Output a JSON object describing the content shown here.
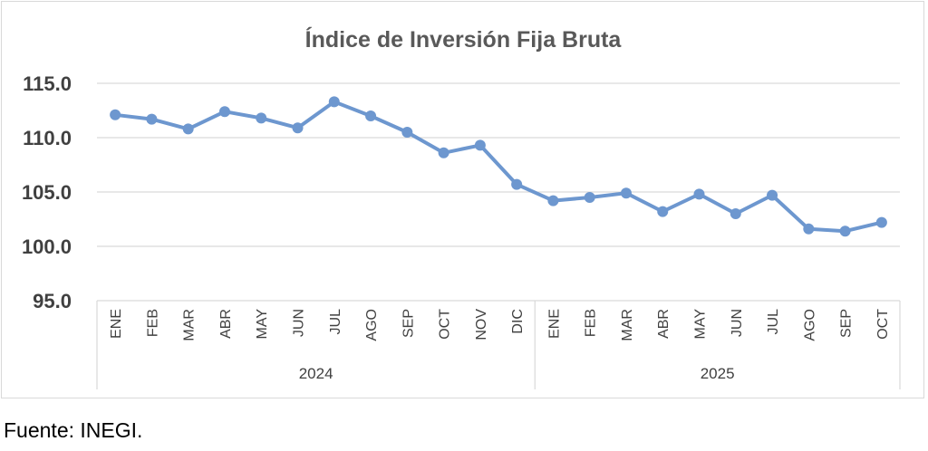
{
  "chart_data": {
    "type": "line",
    "title": "Índice de Inversión Fija Bruta",
    "ylim": [
      95,
      115
    ],
    "yticks": [
      "115.0",
      "110.0",
      "105.0",
      "100.0",
      "95.0"
    ],
    "ytick_values": [
      115,
      110,
      105,
      100,
      95
    ],
    "grid": true,
    "categories": [
      "ENE",
      "FEB",
      "MAR",
      "ABR",
      "MAY",
      "JUN",
      "JUL",
      "AGO",
      "SEP",
      "OCT",
      "NOV",
      "DIC",
      "ENE",
      "FEB",
      "MAR",
      "ABR",
      "MAY",
      "JUN",
      "JUL",
      "AGO",
      "SEP",
      "OCT"
    ],
    "groups": [
      {
        "label": "2024",
        "count": 12
      },
      {
        "label": "2025",
        "count": 10
      }
    ],
    "series": [
      {
        "color": "#6d97cf",
        "values": [
          112.1,
          111.7,
          110.8,
          112.4,
          111.8,
          110.9,
          113.3,
          112.0,
          110.5,
          108.6,
          109.3,
          105.7,
          104.2,
          104.5,
          104.9,
          103.2,
          104.8,
          103.0,
          104.7,
          101.6,
          101.4,
          102.2
        ]
      }
    ]
  },
  "footer": {
    "source": "Fuente: INEGI."
  }
}
